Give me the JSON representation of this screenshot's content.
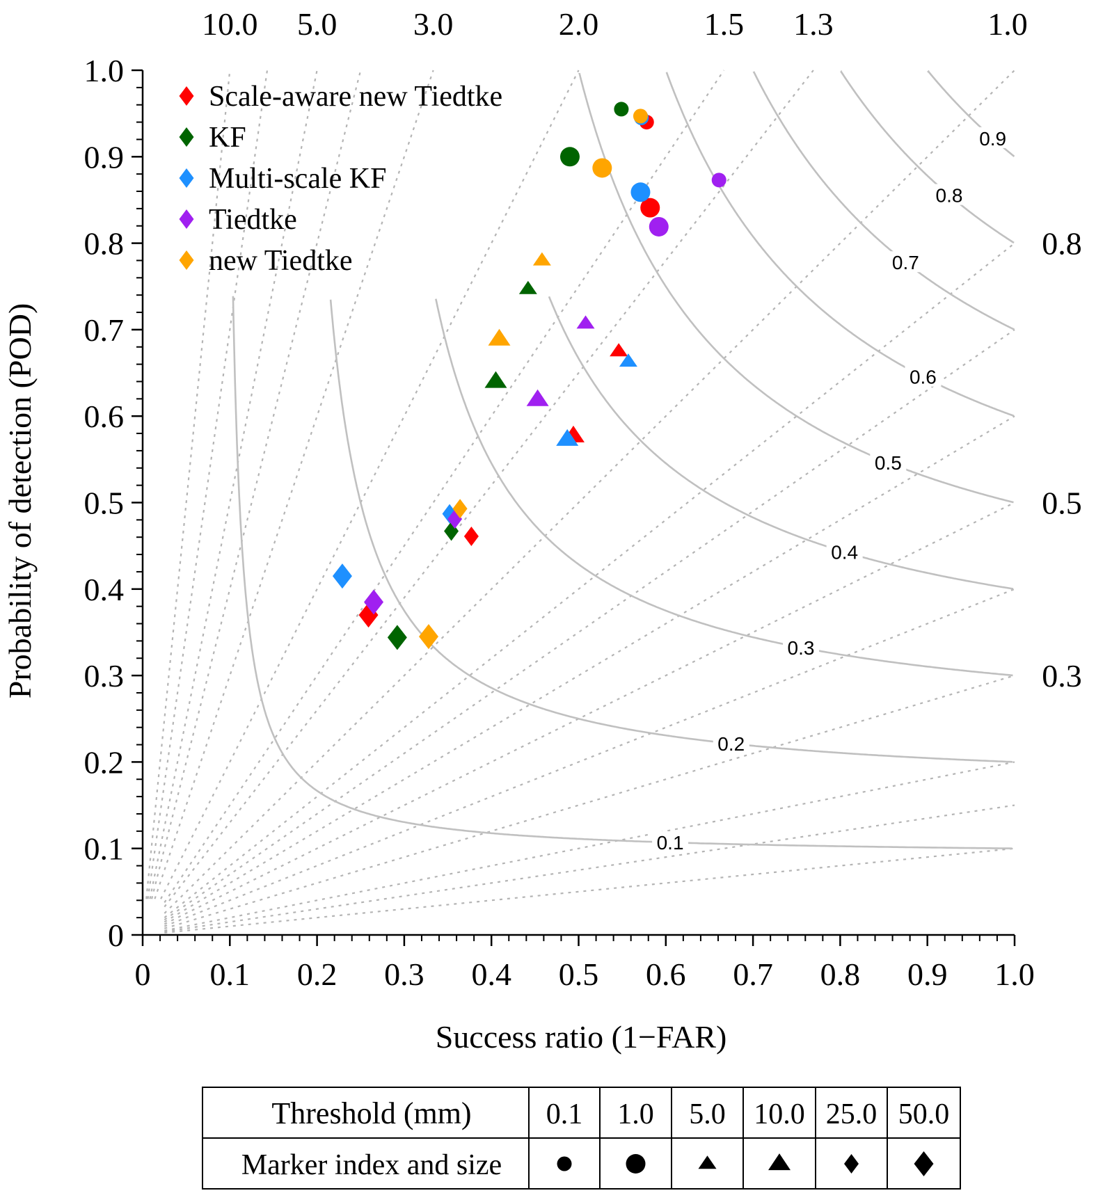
{
  "chart_data": {
    "type": "scatter",
    "subtype": "performance-diagram",
    "xlabel": "Success ratio (1−FAR)",
    "ylabel": "Probability of detection (POD)",
    "xlim": [
      0,
      1
    ],
    "ylim": [
      0,
      1
    ],
    "x_ticks": [
      "0",
      "0.1",
      "0.2",
      "0.3",
      "0.4",
      "0.5",
      "0.6",
      "0.7",
      "0.8",
      "0.9",
      "1.0"
    ],
    "y_ticks": [
      "0",
      "0.1",
      "0.2",
      "0.3",
      "0.4",
      "0.5",
      "0.6",
      "0.7",
      "0.8",
      "0.9",
      "1.0"
    ],
    "bias_lines": {
      "values": [
        10.0,
        5.0,
        3.0,
        2.0,
        1.5,
        1.3,
        1.0,
        0.8,
        0.5,
        0.3
      ],
      "top_labels": [
        "10.0",
        "5.0",
        "3.0",
        "2.0",
        "1.5",
        "1.3",
        "1.0"
      ],
      "right_labels": [
        "0.8",
        "0.5",
        "0.3"
      ],
      "extra_lines": [
        0.1,
        0.15,
        0.2,
        0.6,
        0.4,
        0.7,
        4.0,
        7.0
      ]
    },
    "csi_contours": {
      "values": [
        0.1,
        0.2,
        0.3,
        0.4,
        0.5,
        0.6,
        0.7,
        0.8,
        0.9
      ],
      "labels": [
        "0.1",
        "0.2",
        "0.3",
        "0.4",
        "0.5",
        "0.6",
        "0.7",
        "0.8",
        "0.9"
      ]
    },
    "series": [
      {
        "name": "Scale-aware new Tiedtke",
        "color": "#ff0000",
        "points": [
          {
            "threshold": "0.1",
            "x": 0.578,
            "y": 0.94
          },
          {
            "threshold": "1.0",
            "x": 0.582,
            "y": 0.841
          },
          {
            "threshold": "5.0",
            "x": 0.546,
            "y": 0.675
          },
          {
            "threshold": "10.0",
            "x": 0.494,
            "y": 0.577
          },
          {
            "threshold": "25.0",
            "x": 0.377,
            "y": 0.461
          },
          {
            "threshold": "50.0",
            "x": 0.259,
            "y": 0.37
          }
        ]
      },
      {
        "name": "KF",
        "color": "#006400",
        "points": [
          {
            "threshold": "0.1",
            "x": 0.549,
            "y": 0.955
          },
          {
            "threshold": "1.0",
            "x": 0.49,
            "y": 0.9
          },
          {
            "threshold": "5.0",
            "x": 0.442,
            "y": 0.747
          },
          {
            "threshold": "10.0",
            "x": 0.405,
            "y": 0.64
          },
          {
            "threshold": "25.0",
            "x": 0.354,
            "y": 0.467
          },
          {
            "threshold": "50.0",
            "x": 0.292,
            "y": 0.344
          }
        ]
      },
      {
        "name": "Multi-scale KF",
        "color": "#1e90ff",
        "points": [
          {
            "threshold": "0.1",
            "x": 0.572,
            "y": 0.945
          },
          {
            "threshold": "1.0",
            "x": 0.571,
            "y": 0.859
          },
          {
            "threshold": "5.0",
            "x": 0.557,
            "y": 0.663
          },
          {
            "threshold": "10.0",
            "x": 0.487,
            "y": 0.573
          },
          {
            "threshold": "25.0",
            "x": 0.352,
            "y": 0.487
          },
          {
            "threshold": "50.0",
            "x": 0.229,
            "y": 0.415
          }
        ]
      },
      {
        "name": "Tiedtke",
        "color": "#a020f0",
        "points": [
          {
            "threshold": "0.1",
            "x": 0.661,
            "y": 0.873
          },
          {
            "threshold": "1.0",
            "x": 0.592,
            "y": 0.819
          },
          {
            "threshold": "5.0",
            "x": 0.508,
            "y": 0.707
          },
          {
            "threshold": "10.0",
            "x": 0.453,
            "y": 0.619
          },
          {
            "threshold": "25.0",
            "x": 0.358,
            "y": 0.481
          },
          {
            "threshold": "50.0",
            "x": 0.265,
            "y": 0.385
          }
        ]
      },
      {
        "name": "new Tiedtke",
        "color": "#ffa500",
        "points": [
          {
            "threshold": "0.1",
            "x": 0.571,
            "y": 0.947
          },
          {
            "threshold": "1.0",
            "x": 0.527,
            "y": 0.887
          },
          {
            "threshold": "5.0",
            "x": 0.458,
            "y": 0.78
          },
          {
            "threshold": "10.0",
            "x": 0.409,
            "y": 0.689
          },
          {
            "threshold": "25.0",
            "x": 0.364,
            "y": 0.493
          },
          {
            "threshold": "50.0",
            "x": 0.328,
            "y": 0.345
          }
        ]
      }
    ],
    "legend": [
      "Scale-aware new Tiedtke",
      "KF",
      "Multi-scale KF",
      "Tiedtke",
      "new Tiedtke"
    ],
    "legend_position": "top-left",
    "marker_table": {
      "header_label": "Threshold (mm)",
      "row_label": "Marker index and size",
      "thresholds": [
        "0.1",
        "1.0",
        "5.0",
        "10.0",
        "25.0",
        "50.0"
      ],
      "markers": [
        {
          "shape": "circle",
          "size": "small"
        },
        {
          "shape": "circle",
          "size": "large"
        },
        {
          "shape": "triangle",
          "size": "small"
        },
        {
          "shape": "triangle",
          "size": "large"
        },
        {
          "shape": "diamond",
          "size": "small"
        },
        {
          "shape": "diamond",
          "size": "large"
        }
      ]
    },
    "colors": {
      "csi": "#c0c0c0",
      "bias": "#b4b4b4",
      "axis": "#000000"
    }
  }
}
